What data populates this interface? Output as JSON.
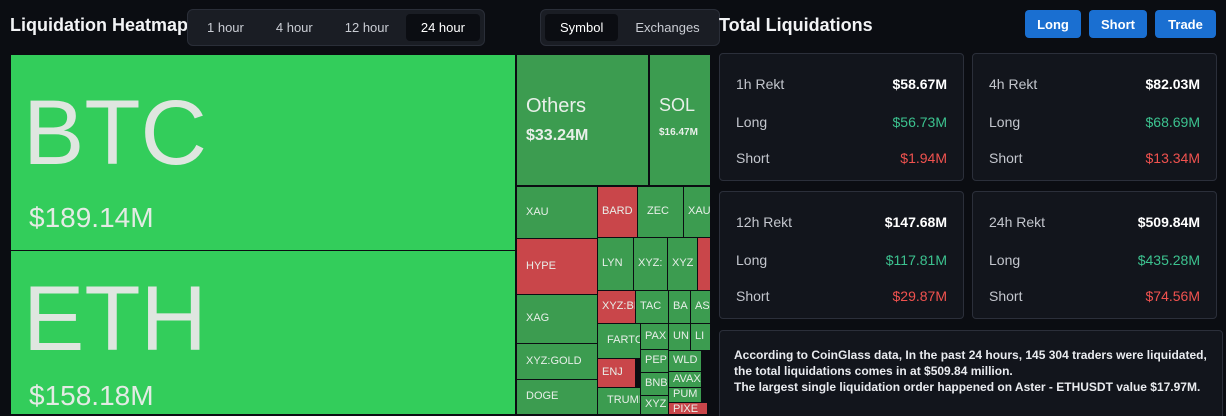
{
  "header": {
    "title": "Liquidation Heatmap",
    "tabs": [
      "1 hour",
      "4 hour",
      "12 hour",
      "24 hour"
    ],
    "active_tab": 3,
    "modes": [
      "Symbol",
      "Exchanges"
    ],
    "active_mode": 0
  },
  "panel": {
    "title": "Total Liquidations",
    "buttons": [
      "Long",
      "Short",
      "Trade"
    ]
  },
  "tiles": [
    {
      "label": "BTC",
      "value": "$189.14M",
      "color": "#33cd5b"
    },
    {
      "label": "ETH",
      "value": "$158.18M",
      "color": "#33cd5b"
    },
    {
      "label": "Others",
      "value": "$33.24M",
      "color": "#3c9c50"
    },
    {
      "label": "SOL",
      "value": "$16.47M",
      "color": "#3c9c50"
    },
    {
      "label": "XAU",
      "color": "#3c9c50"
    },
    {
      "label": "HYPE",
      "color": "#c9464a"
    },
    {
      "label": "XAG",
      "color": "#3c9c50"
    },
    {
      "label": "XYZ:GOLD",
      "color": "#3c9c50"
    },
    {
      "label": "DOGE",
      "color": "#3c9c50"
    },
    {
      "label": "BARD",
      "color": "#c9464a"
    },
    {
      "label": "ZEC",
      "color": "#3c9c50"
    },
    {
      "label": "XAU",
      "color": "#3c9c50"
    },
    {
      "label": "LYN",
      "color": "#3c9c50"
    },
    {
      "label": "XYZ:",
      "color": "#3c9c50"
    },
    {
      "label": "XYZ",
      "color": "#3c9c50"
    },
    {
      "color": "#c9464a"
    },
    {
      "label": "XYZ:BI",
      "color": "#c9464a"
    },
    {
      "label": "TAC",
      "color": "#3c9c50"
    },
    {
      "label": "BA",
      "color": "#3c9c50"
    },
    {
      "label": "AS",
      "color": "#3c9c50"
    },
    {
      "label": "FARTC",
      "color": "#3c9c50"
    },
    {
      "label": "PAX",
      "color": "#3c9c50"
    },
    {
      "label": "UN",
      "color": "#3c9c50"
    },
    {
      "label": "LI",
      "color": "#3c9c50"
    },
    {
      "label": "ENJ",
      "color": "#c9464a"
    },
    {
      "label": "PEP",
      "color": "#3c9c50"
    },
    {
      "label": "BNB",
      "color": "#3c9c50"
    },
    {
      "label": "WLD",
      "color": "#3c9c50"
    },
    {
      "label": "AVAX",
      "color": "#3c9c50"
    },
    {
      "label": "PUM",
      "color": "#3c9c50"
    },
    {
      "label": "XYZ",
      "color": "#3c9c50"
    },
    {
      "label": "TRUMI",
      "color": "#3c9c50"
    },
    {
      "label": "PIXE",
      "color": "#c9464a"
    }
  ],
  "cards": [
    {
      "title": "1h Rekt",
      "total": "$58.67M",
      "rows": [
        {
          "label": "Long",
          "value": "$56.73M"
        },
        {
          "label": "Short",
          "value": "$1.94M"
        }
      ]
    },
    {
      "title": "4h Rekt",
      "total": "$82.03M",
      "rows": [
        {
          "label": "Long",
          "value": "$68.69M"
        },
        {
          "label": "Short",
          "value": "$13.34M"
        }
      ]
    },
    {
      "title": "12h Rekt",
      "total": "$147.68M",
      "rows": [
        {
          "label": "Long",
          "value": "$117.81M"
        },
        {
          "label": "Short",
          "value": "$29.87M"
        }
      ]
    },
    {
      "title": "24h Rekt",
      "total": "$509.84M",
      "rows": [
        {
          "label": "Long",
          "value": "$435.28M"
        },
        {
          "label": "Short",
          "value": "$74.56M"
        }
      ]
    }
  ],
  "summary": [
    "According to CoinGlass data, In the past 24 hours, 145 304 traders were liquidated, the total liquidations comes in at $509.84 million.",
    "The largest single liquidation order happened on Aster - ETHUSDT value $17.97M."
  ]
}
